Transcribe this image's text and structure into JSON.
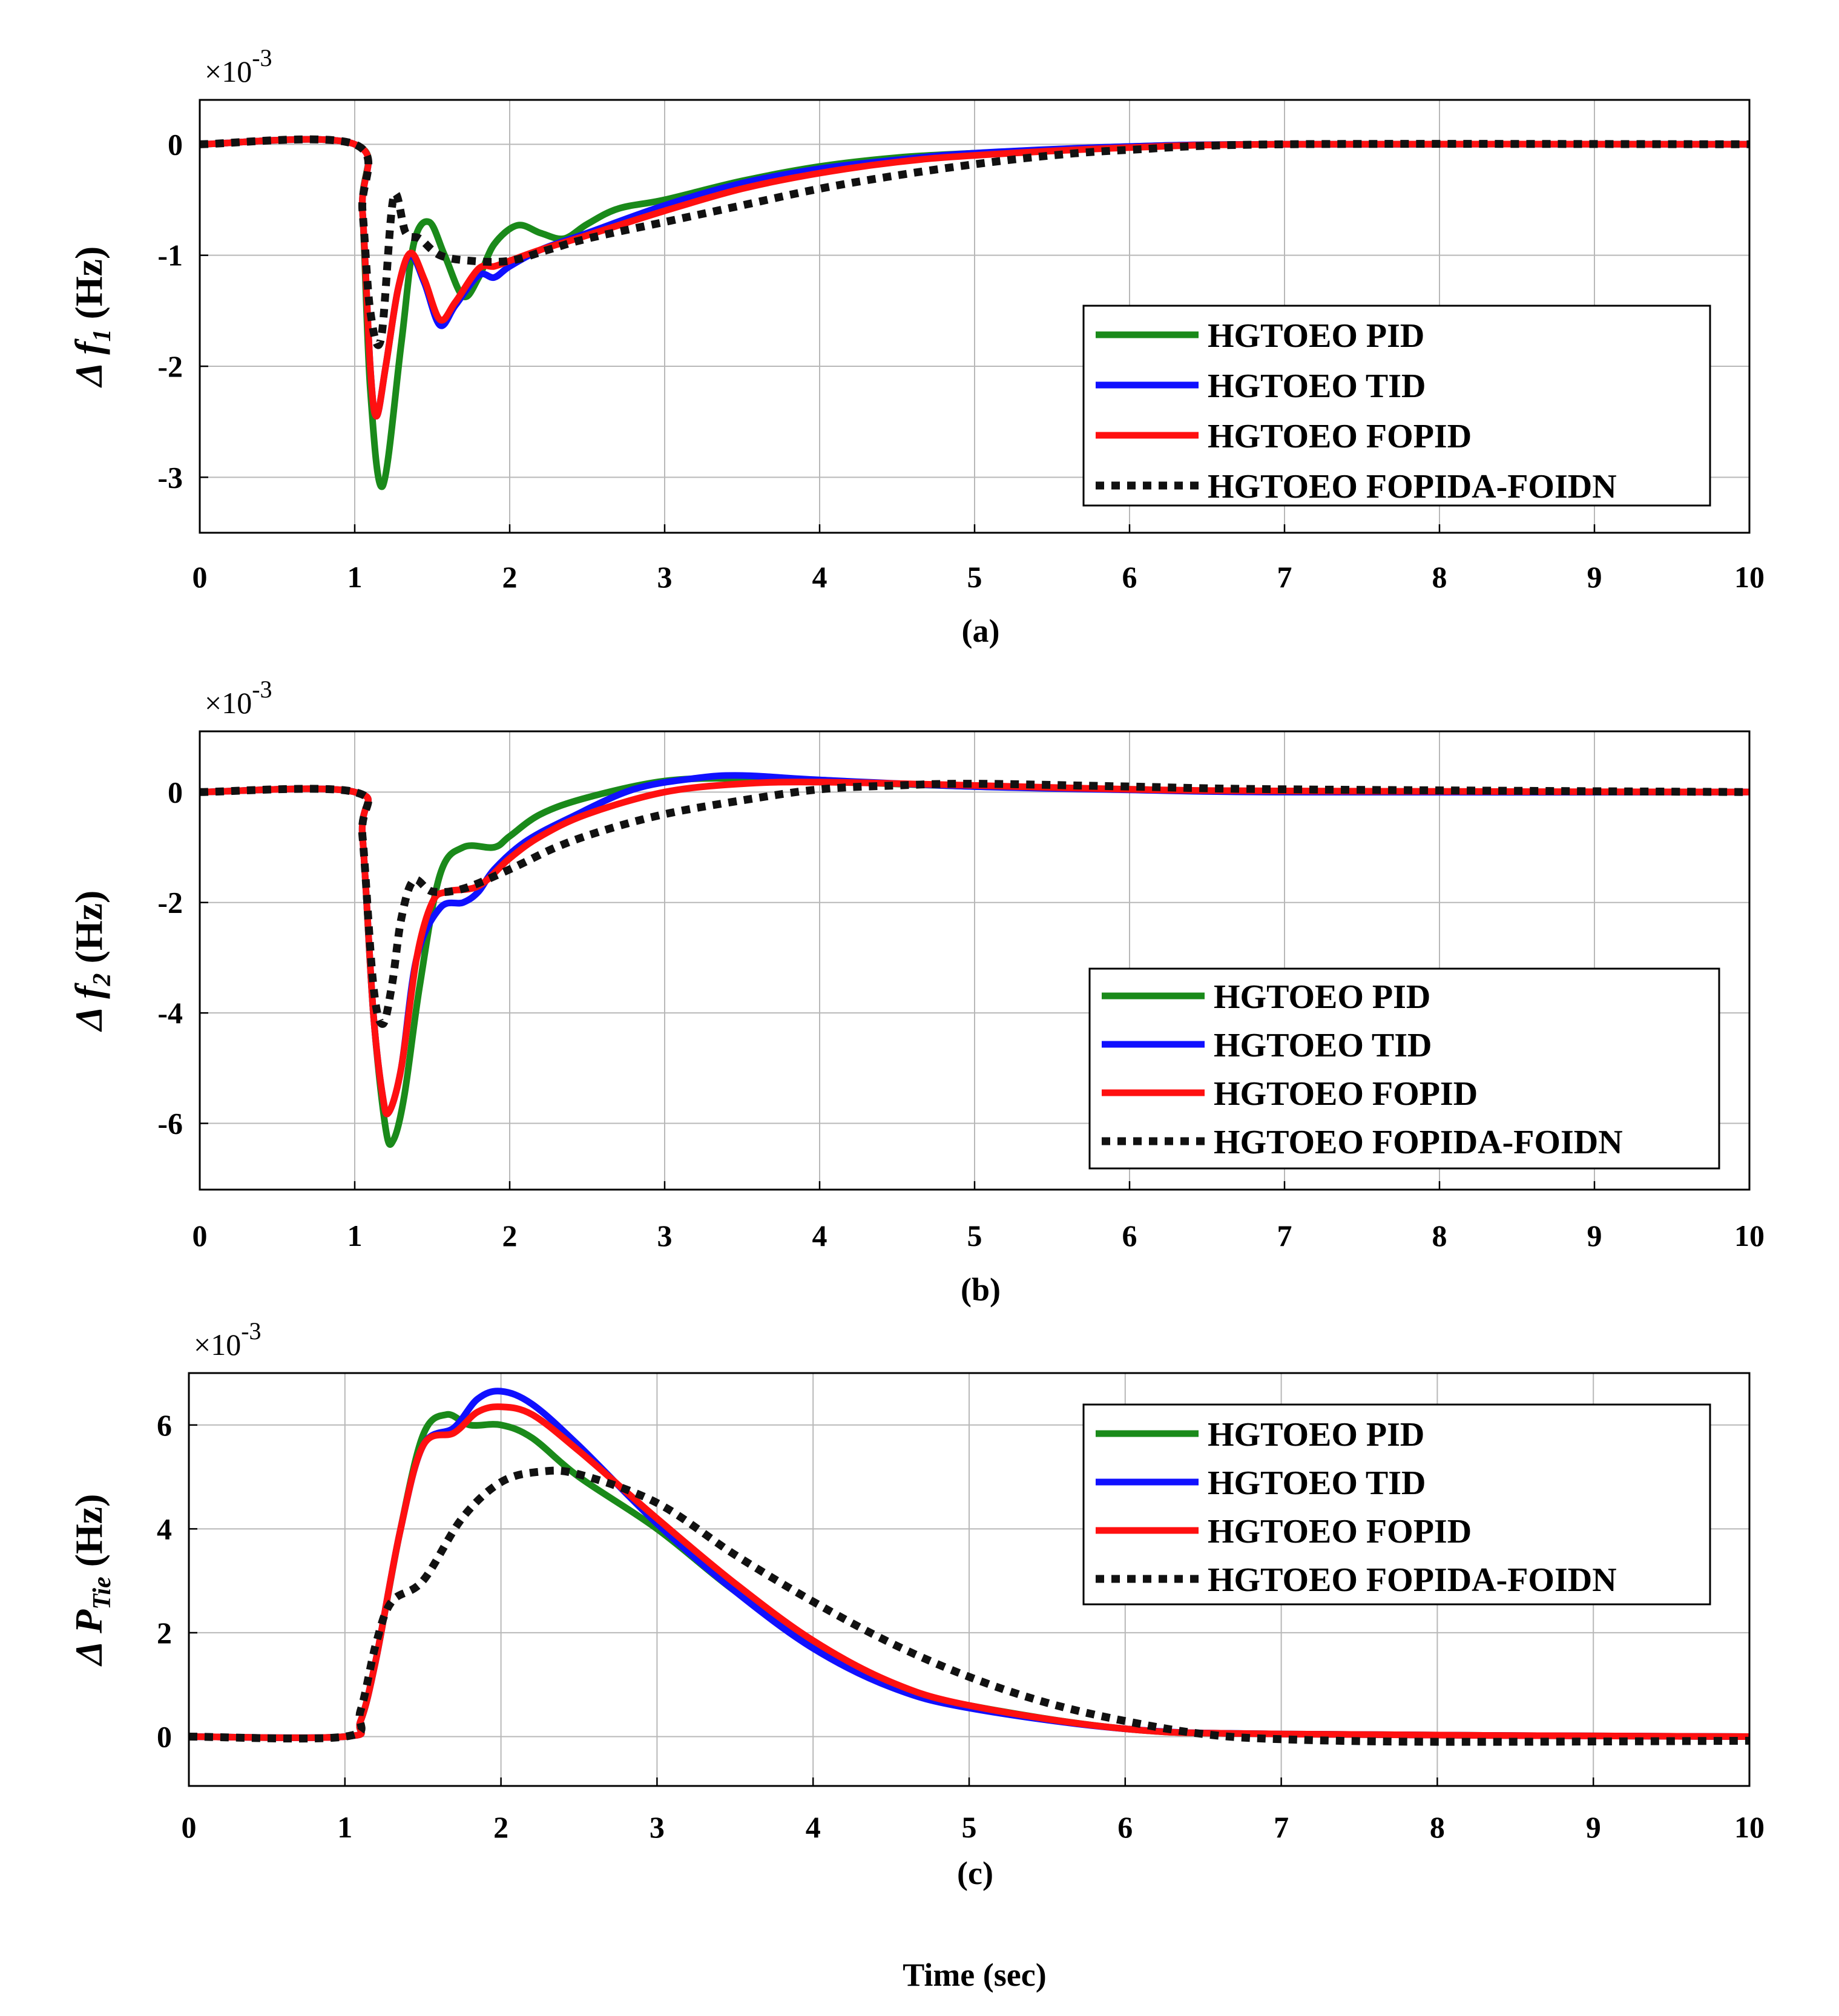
{
  "figure_label": "Time (sec)",
  "series_styles": [
    {
      "color": "#1a8a1a",
      "dash": "none"
    },
    {
      "color": "#1010ff",
      "dash": "none"
    },
    {
      "color": "#ff1010",
      "dash": "none"
    },
    {
      "color": "#111111",
      "dash": "dotted"
    }
  ],
  "chart_data": [
    {
      "type": "line",
      "caption": "(a)",
      "ylabel_symbol": "Δ",
      "ylabel_var": "f",
      "ylabel_sub": "1",
      "ylabel_unit": "(Hz)",
      "exponent_base": "×10",
      "exponent_power": "-3",
      "xlim": [
        0,
        10
      ],
      "ylim": [
        -3.5,
        0.4
      ],
      "xticks": [
        "0",
        "1",
        "2",
        "3",
        "4",
        "5",
        "6",
        "7",
        "8",
        "9",
        "10"
      ],
      "yticks": [
        0,
        -1,
        -2,
        -3
      ],
      "ytick_labels": [
        "0",
        "-1",
        "-2",
        "-3"
      ],
      "grid": true,
      "legend_position": "right-center",
      "series": [
        {
          "name": "HGTOEO PID",
          "x": [
            0,
            1,
            1.05,
            1.1,
            1.18,
            1.3,
            1.38,
            1.48,
            1.58,
            1.7,
            1.8,
            1.9,
            2.05,
            2.2,
            2.35,
            2.5,
            2.7,
            3,
            3.5,
            4,
            4.5,
            5,
            6,
            7,
            10
          ],
          "y": [
            0,
            0,
            -0.6,
            -2.2,
            -3.08,
            -1.8,
            -0.9,
            -0.7,
            -1.0,
            -1.37,
            -1.2,
            -0.9,
            -0.73,
            -0.8,
            -0.85,
            -0.72,
            -0.58,
            -0.5,
            -0.33,
            -0.2,
            -0.12,
            -0.08,
            -0.02,
            0,
            0
          ]
        },
        {
          "name": "HGTOEO TID",
          "x": [
            0,
            1,
            1.05,
            1.1,
            1.14,
            1.2,
            1.28,
            1.36,
            1.45,
            1.55,
            1.65,
            1.8,
            1.9,
            2.0,
            2.2,
            2.5,
            3,
            3.5,
            4,
            4.5,
            5,
            6,
            7,
            10
          ],
          "y": [
            0,
            0,
            -0.6,
            -2.0,
            -2.45,
            -2.0,
            -1.3,
            -1.0,
            -1.25,
            -1.63,
            -1.45,
            -1.18,
            -1.2,
            -1.1,
            -0.95,
            -0.8,
            -0.55,
            -0.35,
            -0.22,
            -0.14,
            -0.08,
            -0.02,
            0,
            0
          ]
        },
        {
          "name": "HGTOEO FOPID",
          "x": [
            0,
            1,
            1.05,
            1.1,
            1.14,
            1.2,
            1.28,
            1.36,
            1.45,
            1.55,
            1.65,
            1.8,
            1.9,
            2.0,
            2.2,
            2.5,
            3,
            3.5,
            4,
            4.5,
            5,
            6,
            7,
            10
          ],
          "y": [
            0,
            0,
            -0.6,
            -2.0,
            -2.45,
            -2.0,
            -1.3,
            -0.98,
            -1.22,
            -1.58,
            -1.42,
            -1.12,
            -1.1,
            -1.05,
            -0.95,
            -0.82,
            -0.6,
            -0.4,
            -0.26,
            -0.16,
            -0.1,
            -0.03,
            0,
            0
          ]
        },
        {
          "name": "HGTOEO FOPIDA-FOIDN",
          "x": [
            0,
            1,
            1.05,
            1.1,
            1.17,
            1.25,
            1.33,
            1.42,
            1.55,
            1.75,
            2.0,
            2.25,
            2.5,
            3,
            3.5,
            4,
            4.5,
            5,
            5.5,
            6,
            7,
            10
          ],
          "y": [
            0,
            0,
            -0.6,
            -1.5,
            -1.75,
            -0.48,
            -0.8,
            -0.85,
            -1.0,
            -1.05,
            -1.05,
            -0.95,
            -0.85,
            -0.7,
            -0.55,
            -0.4,
            -0.28,
            -0.18,
            -0.1,
            -0.05,
            0,
            0
          ]
        }
      ]
    },
    {
      "type": "line",
      "caption": "(b)",
      "ylabel_symbol": "Δ",
      "ylabel_var": "f",
      "ylabel_sub": "2",
      "ylabel_unit": "(Hz)",
      "exponent_base": "×10",
      "exponent_power": "-3",
      "xlim": [
        0,
        10
      ],
      "ylim": [
        -7.2,
        1.1
      ],
      "xticks": [
        "0",
        "1",
        "2",
        "3",
        "4",
        "5",
        "6",
        "7",
        "8",
        "9",
        "10"
      ],
      "yticks": [
        0,
        -2,
        -4,
        -6
      ],
      "ytick_labels": [
        "0",
        "-2",
        "-4",
        "-6"
      ],
      "grid": true,
      "legend_position": "bottom-right",
      "series": [
        {
          "name": "HGTOEO PID",
          "x": [
            0,
            1,
            1.05,
            1.12,
            1.2,
            1.25,
            1.32,
            1.42,
            1.55,
            1.7,
            1.9,
            2.0,
            2.2,
            2.5,
            3,
            3.5,
            4,
            5,
            6,
            7,
            10
          ],
          "y": [
            0,
            0,
            -0.8,
            -4.0,
            -6.1,
            -6.3,
            -5.5,
            -3.5,
            -1.5,
            -1.0,
            -1.0,
            -0.8,
            -0.4,
            -0.1,
            0.2,
            0.25,
            0.2,
            0.1,
            0.05,
            0,
            0
          ]
        },
        {
          "name": "HGTOEO TID",
          "x": [
            0,
            1,
            1.05,
            1.12,
            1.18,
            1.22,
            1.3,
            1.4,
            1.55,
            1.7,
            1.8,
            1.9,
            2.1,
            2.4,
            2.8,
            3.2,
            3.5,
            4,
            5,
            6,
            7,
            10
          ],
          "y": [
            0,
            0,
            -0.8,
            -4.0,
            -5.5,
            -5.8,
            -5.0,
            -3.0,
            -2.1,
            -2.0,
            -1.8,
            -1.4,
            -0.9,
            -0.45,
            0.05,
            0.25,
            0.3,
            0.22,
            0.1,
            0.04,
            0,
            0
          ]
        },
        {
          "name": "HGTOEO FOPID",
          "x": [
            0,
            1,
            1.05,
            1.12,
            1.18,
            1.22,
            1.3,
            1.4,
            1.5,
            1.6,
            1.8,
            2.0,
            2.2,
            2.5,
            3,
            3.5,
            4,
            5,
            6,
            7,
            10
          ],
          "y": [
            0,
            0,
            -0.8,
            -4.0,
            -5.5,
            -5.8,
            -5.0,
            -3.0,
            -2.0,
            -1.8,
            -1.7,
            -1.2,
            -0.8,
            -0.4,
            0.0,
            0.15,
            0.18,
            0.12,
            0.05,
            0.02,
            0
          ]
        },
        {
          "name": "HGTOEO FOPIDA-FOIDN",
          "x": [
            0,
            1,
            1.05,
            1.12,
            1.18,
            1.24,
            1.3,
            1.38,
            1.5,
            1.7,
            2.0,
            2.3,
            2.6,
            3,
            3.5,
            4,
            4.5,
            5,
            6,
            7,
            10
          ],
          "y": [
            0,
            0,
            -0.8,
            -3.5,
            -4.2,
            -3.5,
            -2.3,
            -1.6,
            -1.8,
            -1.75,
            -1.4,
            -1.0,
            -0.7,
            -0.4,
            -0.15,
            0.05,
            0.12,
            0.15,
            0.1,
            0.05,
            0
          ]
        }
      ]
    },
    {
      "type": "line",
      "caption": "(c)",
      "ylabel_symbol": "Δ",
      "ylabel_var": "P",
      "ylabel_sub": "Tie",
      "ylabel_unit": "(Hz)",
      "exponent_base": "×10",
      "exponent_power": "-3",
      "xlim": [
        0,
        10
      ],
      "ylim": [
        -0.95,
        7.0
      ],
      "xticks": [
        "0",
        "1",
        "2",
        "3",
        "4",
        "5",
        "6",
        "7",
        "8",
        "9",
        "10"
      ],
      "yticks": [
        0,
        2,
        4,
        6
      ],
      "ytick_labels": [
        "0",
        "2",
        "4",
        "6"
      ],
      "grid": true,
      "legend_position": "top-right",
      "series": [
        {
          "name": "HGTOEO PID",
          "x": [
            0,
            1,
            1.1,
            1.2,
            1.35,
            1.5,
            1.65,
            1.8,
            2.0,
            2.2,
            2.5,
            3,
            3.5,
            4,
            4.5,
            5,
            6,
            7,
            10
          ],
          "y": [
            0,
            0,
            0.3,
            1.5,
            3.9,
            5.8,
            6.2,
            6.0,
            6.0,
            5.75,
            5.0,
            4.0,
            2.8,
            1.8,
            1.0,
            0.6,
            0.15,
            0.05,
            0
          ]
        },
        {
          "name": "HGTOEO TID",
          "x": [
            0,
            1,
            1.1,
            1.2,
            1.35,
            1.5,
            1.7,
            1.85,
            2.0,
            2.2,
            2.5,
            3,
            3.5,
            4,
            4.5,
            5,
            6,
            7,
            10
          ],
          "y": [
            0,
            0,
            0.3,
            1.5,
            3.9,
            5.6,
            5.95,
            6.5,
            6.65,
            6.4,
            5.6,
            4.1,
            2.8,
            1.7,
            0.95,
            0.55,
            0.15,
            0.05,
            0
          ]
        },
        {
          "name": "HGTOEO FOPID",
          "x": [
            0,
            1,
            1.1,
            1.2,
            1.35,
            1.5,
            1.7,
            1.85,
            2.0,
            2.2,
            2.5,
            3,
            3.5,
            4,
            4.5,
            5,
            6,
            7,
            10
          ],
          "y": [
            0,
            0,
            0.3,
            1.5,
            3.9,
            5.6,
            5.85,
            6.25,
            6.35,
            6.2,
            5.5,
            4.2,
            2.95,
            1.85,
            1.05,
            0.6,
            0.15,
            0.05,
            0
          ]
        },
        {
          "name": "HGTOEO FOPIDA-FOIDN",
          "x": [
            0,
            1,
            1.1,
            1.2,
            1.3,
            1.5,
            1.75,
            2.0,
            2.25,
            2.5,
            3,
            3.5,
            4,
            4.5,
            5,
            5.5,
            6,
            6.5,
            7,
            8,
            10
          ],
          "y": [
            0,
            0,
            0.5,
            1.8,
            2.6,
            3.0,
            4.2,
            4.9,
            5.1,
            5.05,
            4.5,
            3.5,
            2.6,
            1.8,
            1.15,
            0.65,
            0.3,
            0.05,
            -0.05,
            -0.1,
            -0.08
          ]
        }
      ]
    }
  ]
}
